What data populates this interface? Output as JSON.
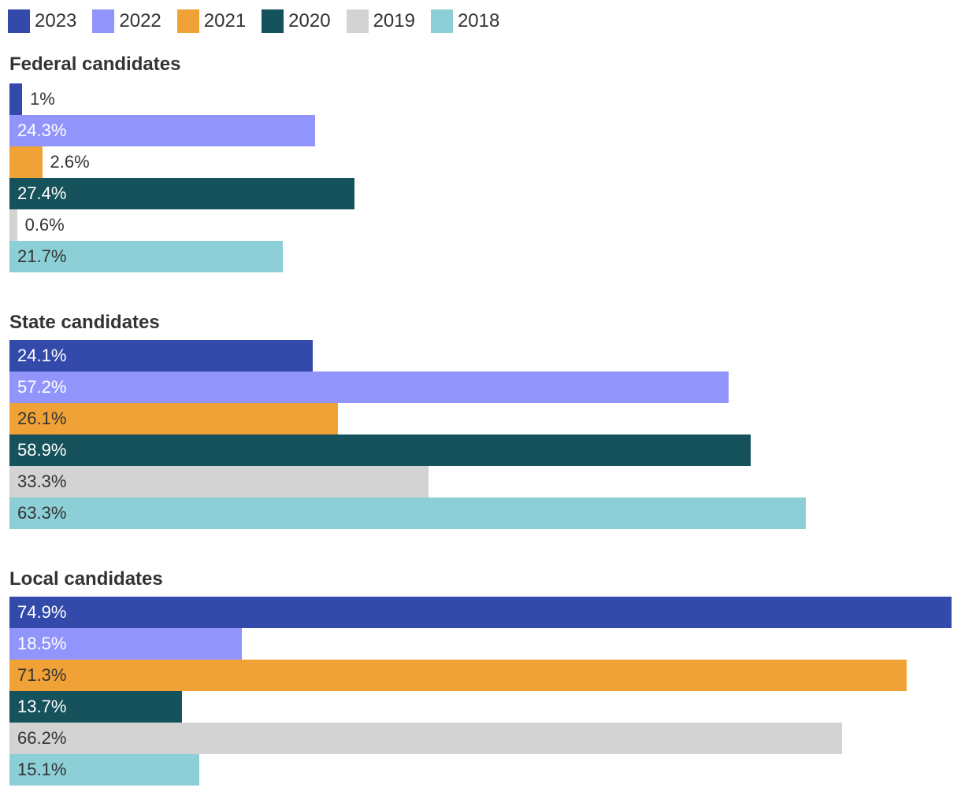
{
  "chart_data": {
    "type": "bar",
    "orientation": "horizontal",
    "legend_position": "top-left",
    "grid": false,
    "xlim": [
      0,
      74.9
    ],
    "series": [
      {
        "name": "2023",
        "color": "#334aab",
        "label_color": "#ffffff"
      },
      {
        "name": "2022",
        "color": "#9195fb",
        "label_color": "#ffffff"
      },
      {
        "name": "2021",
        "color": "#f0a236",
        "label_color": "#333333"
      },
      {
        "name": "2020",
        "color": "#16525b",
        "label_color": "#ffffff"
      },
      {
        "name": "2019",
        "color": "#d3d3d3",
        "label_color": "#333333"
      },
      {
        "name": "2018",
        "color": "#8ccfd7",
        "label_color": "#333333"
      }
    ],
    "groups": [
      {
        "title": "Federal candidates",
        "values": [
          1,
          24.3,
          2.6,
          27.4,
          0.6,
          21.7
        ],
        "labels": [
          "1%",
          "24.3%",
          "2.6%",
          "27.4%",
          "0.6%",
          "21.7%"
        ]
      },
      {
        "title": "State candidates",
        "values": [
          24.1,
          57.2,
          26.1,
          58.9,
          33.3,
          63.3
        ],
        "labels": [
          "24.1%",
          "57.2%",
          "26.1%",
          "58.9%",
          "33.3%",
          "63.3%"
        ]
      },
      {
        "title": "Local candidates",
        "values": [
          74.9,
          18.5,
          71.3,
          13.7,
          66.2,
          15.1
        ],
        "labels": [
          "74.9%",
          "18.5%",
          "71.3%",
          "13.7%",
          "66.2%",
          "15.1%"
        ]
      }
    ]
  }
}
